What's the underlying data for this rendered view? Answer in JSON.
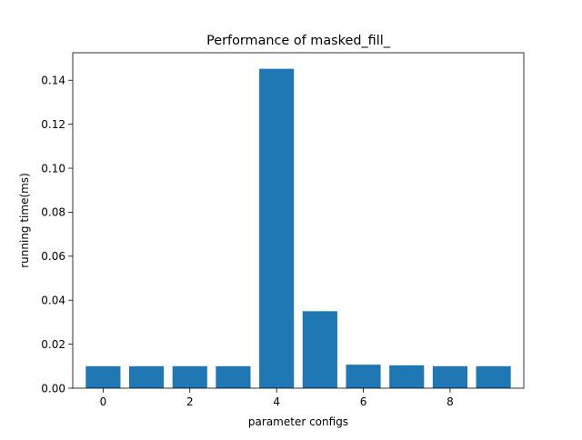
{
  "chart_data": {
    "type": "bar",
    "title": "Performance of masked_fill_",
    "xlabel": "parameter configs",
    "ylabel": "running time(ms)",
    "categories": [
      0,
      1,
      2,
      3,
      4,
      5,
      6,
      7,
      8,
      9
    ],
    "values": [
      0.01,
      0.01,
      0.01,
      0.01,
      0.1452,
      0.035,
      0.0107,
      0.0104,
      0.01,
      0.01
    ],
    "xlim": [
      -0.7,
      9.7
    ],
    "ylim": [
      0,
      0.1525
    ],
    "xticks": [
      0,
      2,
      4,
      6,
      8
    ],
    "xtick_labels": [
      "0",
      "2",
      "4",
      "6",
      "8"
    ],
    "yticks": [
      0.0,
      0.02,
      0.04,
      0.06,
      0.08,
      0.1,
      0.12,
      0.14
    ],
    "ytick_labels": [
      "0.00",
      "0.02",
      "0.04",
      "0.06",
      "0.08",
      "0.10",
      "0.12",
      "0.14"
    ],
    "bar_color": "#1f77b4",
    "grid": false,
    "legend": "none"
  }
}
